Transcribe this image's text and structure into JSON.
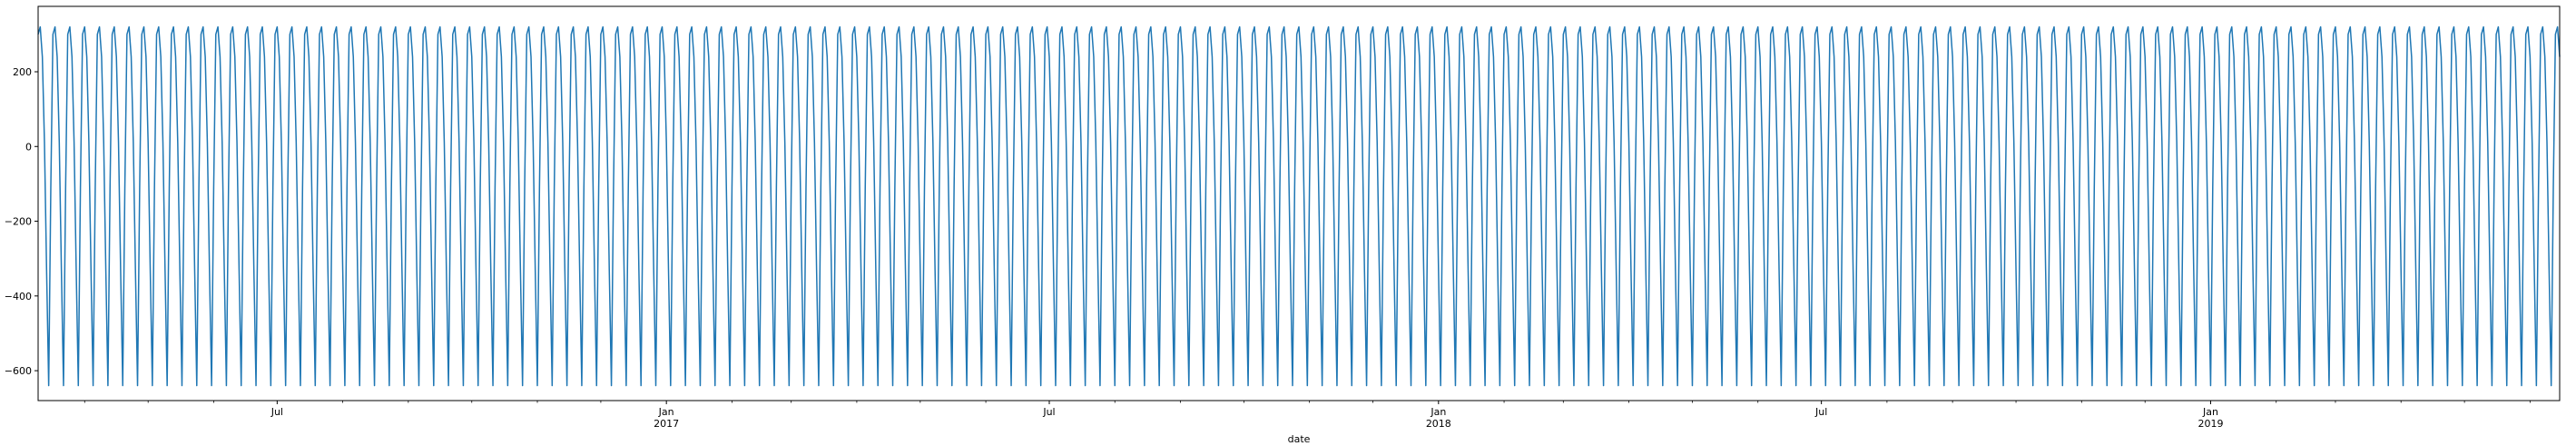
{
  "chart_data": {
    "type": "line",
    "title": "",
    "xlabel": "date",
    "ylabel": "",
    "x_range": [
      "2016-03-10",
      "2019-06-15"
    ],
    "ylim": [
      -680,
      375
    ],
    "y_ticks": [
      200,
      0,
      -200,
      -400,
      -600
    ],
    "y_tick_labels": [
      "200",
      "0",
      "−200",
      "−400",
      "−600"
    ],
    "x_major_ticks": [
      {
        "date": "2016-07-01",
        "label": "Jul",
        "sublabel": ""
      },
      {
        "date": "2017-01-01",
        "label": "Jan",
        "sublabel": "2017"
      },
      {
        "date": "2017-07-01",
        "label": "Jul",
        "sublabel": ""
      },
      {
        "date": "2018-01-01",
        "label": "Jan",
        "sublabel": "2018"
      },
      {
        "date": "2018-07-01",
        "label": "Jul",
        "sublabel": ""
      },
      {
        "date": "2019-01-01",
        "label": "Jan",
        "sublabel": "2019"
      }
    ],
    "x_minor_tick_dates": [
      "2016-04-01",
      "2016-05-01",
      "2016-06-01",
      "2016-08-01",
      "2016-09-01",
      "2016-10-01",
      "2016-11-01",
      "2016-12-01",
      "2017-02-01",
      "2017-03-01",
      "2017-04-01",
      "2017-05-01",
      "2017-06-01",
      "2017-08-01",
      "2017-09-01",
      "2017-10-01",
      "2017-11-01",
      "2017-12-01",
      "2018-02-01",
      "2018-03-01",
      "2018-04-01",
      "2018-05-01",
      "2018-06-01",
      "2018-08-01",
      "2018-09-01",
      "2018-10-01",
      "2018-11-01",
      "2018-12-01",
      "2019-02-01",
      "2019-03-01",
      "2019-04-01",
      "2019-05-01",
      "2019-06-01"
    ],
    "series": [
      {
        "color": "#1f77b4",
        "start_date": "2016-03-10",
        "end_date": "2019-06-15",
        "cycle_days": 7,
        "weekly_cycle_values": [
          300,
          320,
          240,
          10,
          -330,
          -640,
          -110
        ]
      }
    ],
    "grid": false,
    "legend": "none"
  }
}
